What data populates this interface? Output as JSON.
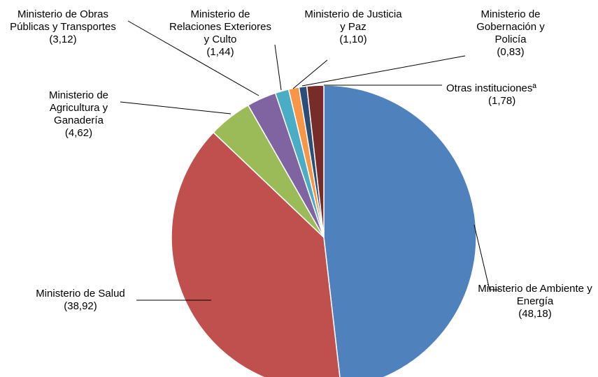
{
  "chart_data": {
    "type": "pie",
    "categories": [
      "Ministerio de Ambiente y Energía",
      "Ministerio de Salud",
      "Ministerio de Agricultura y Ganadería",
      "Ministerio de Obras Públicas y Transportes",
      "Ministerio de Relaciones Exteriores y Culto",
      "Ministerio de Justicia y Paz",
      "Ministerio de Gobernación y Policía",
      "Otras institucionesª"
    ],
    "values": [
      48.18,
      38.92,
      4.62,
      3.12,
      1.44,
      1.1,
      0.83,
      1.78
    ],
    "value_labels": [
      "(48,18)",
      "(38,92)",
      "(4,62)",
      "(3,12)",
      "(1,44)",
      "(1,10)",
      "(0,83)",
      "(1,78)"
    ],
    "colors": [
      "#4f81bd",
      "#c0504d",
      "#9bbb59",
      "#8064a2",
      "#4bacc6",
      "#f79646",
      "#2c4d75",
      "#772c2a"
    ]
  }
}
